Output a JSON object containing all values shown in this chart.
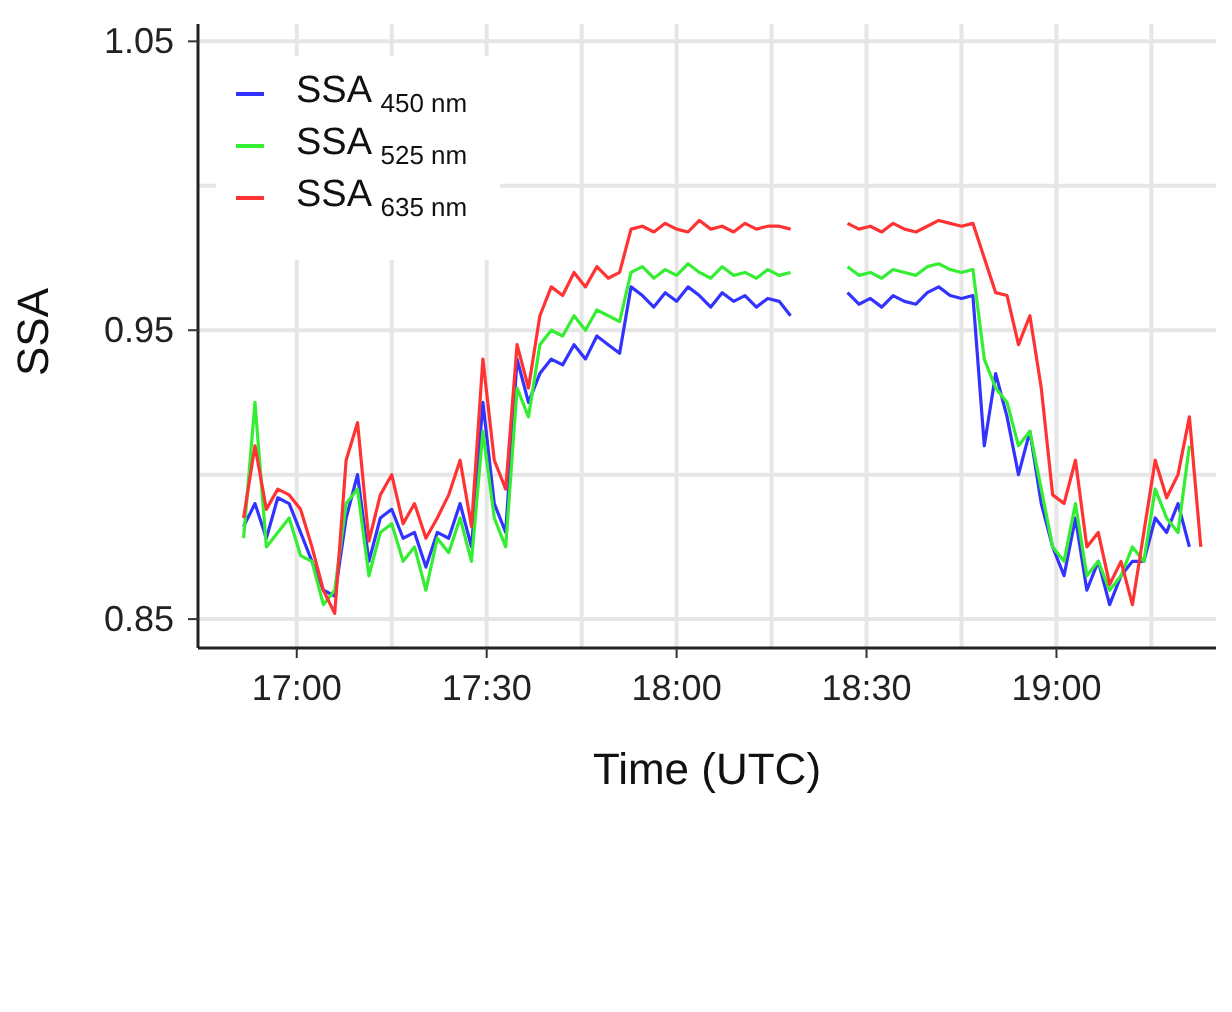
{
  "chart_data": {
    "type": "line",
    "xlabel": "Time (UTC)",
    "ylabel": "SSA",
    "x": [
      16.86,
      16.89,
      16.92,
      16.95,
      16.98,
      17.01,
      17.04,
      17.07,
      17.1,
      17.13,
      17.16,
      17.19,
      17.22,
      17.25,
      17.28,
      17.31,
      17.34,
      17.37,
      17.4,
      17.43,
      17.46,
      17.49,
      17.52,
      17.55,
      17.58,
      17.61,
      17.64,
      17.67,
      17.7,
      17.73,
      17.76,
      17.79,
      17.82,
      17.85,
      17.88,
      17.91,
      17.94,
      17.97,
      18.0,
      18.03,
      18.06,
      18.09,
      18.12,
      18.15,
      18.18,
      18.21,
      18.24,
      18.27,
      18.3,
      18.33,
      18.36,
      18.39,
      18.42,
      18.45,
      18.48,
      18.51,
      18.54,
      18.57,
      18.6,
      18.63,
      18.66,
      18.69,
      18.72,
      18.75,
      18.78,
      18.81,
      18.84,
      18.87,
      18.9,
      18.93,
      18.96,
      18.99,
      19.02,
      19.05,
      19.08,
      19.11,
      19.14,
      19.17,
      19.2,
      19.23,
      19.26,
      19.29,
      19.32,
      19.35,
      19.38
    ],
    "series": [
      {
        "name": "SSA $_{450 nm}$",
        "color": "#3333ff",
        "values": [
          0.882,
          0.89,
          0.878,
          0.892,
          0.89,
          0.88,
          0.87,
          0.86,
          0.858,
          0.885,
          0.9,
          0.87,
          0.885,
          0.888,
          0.878,
          0.88,
          0.868,
          0.88,
          0.878,
          0.89,
          0.875,
          0.925,
          0.89,
          0.88,
          0.94,
          0.925,
          0.935,
          0.94,
          0.938,
          0.945,
          0.94,
          0.948,
          0.945,
          0.942,
          0.965,
          0.962,
          0.958,
          0.963,
          0.96,
          0.965,
          0.962,
          0.958,
          0.963,
          0.96,
          0.962,
          0.958,
          0.961,
          0.96,
          0.955,
          null,
          null,
          null,
          null,
          0.963,
          0.959,
          0.961,
          0.958,
          0.962,
          0.96,
          0.959,
          0.963,
          0.965,
          0.962,
          0.961,
          0.962,
          0.91,
          0.935,
          0.92,
          0.9,
          0.915,
          0.89,
          0.875,
          0.865,
          0.885,
          0.86,
          0.87,
          0.855,
          0.865,
          0.87,
          0.87,
          0.885,
          0.88,
          0.89,
          0.875,
          null
        ]
      },
      {
        "name": "SSA $_{525 nm}$",
        "color": "#33ee33",
        "values": [
          0.878,
          0.925,
          0.875,
          0.88,
          0.885,
          0.872,
          0.87,
          0.855,
          0.86,
          0.89,
          0.895,
          0.865,
          0.88,
          0.883,
          0.87,
          0.875,
          0.86,
          0.878,
          0.873,
          0.885,
          0.87,
          0.915,
          0.885,
          0.875,
          0.93,
          0.92,
          0.945,
          0.95,
          0.948,
          0.955,
          0.95,
          0.957,
          0.955,
          0.953,
          0.97,
          0.972,
          0.968,
          0.971,
          0.969,
          0.973,
          0.97,
          0.968,
          0.972,
          0.969,
          0.97,
          0.968,
          0.971,
          0.969,
          0.97,
          null,
          null,
          null,
          null,
          0.972,
          0.969,
          0.97,
          0.968,
          0.971,
          0.97,
          0.969,
          0.972,
          0.973,
          0.971,
          0.97,
          0.971,
          0.94,
          0.93,
          0.925,
          0.91,
          0.915,
          0.895,
          0.875,
          0.87,
          0.89,
          0.865,
          0.87,
          0.86,
          0.865,
          0.875,
          0.87,
          0.895,
          0.885,
          0.88,
          0.91,
          null
        ]
      },
      {
        "name": "SSA $_{635 nm}$",
        "color": "#ff3333",
        "values": [
          0.885,
          0.91,
          0.888,
          0.895,
          0.893,
          0.888,
          0.875,
          0.86,
          0.852,
          0.905,
          0.918,
          0.877,
          0.893,
          0.9,
          0.883,
          0.89,
          0.878,
          0.885,
          0.893,
          0.905,
          0.882,
          0.94,
          0.905,
          0.895,
          0.945,
          0.93,
          0.955,
          0.965,
          0.962,
          0.97,
          0.965,
          0.972,
          0.968,
          0.97,
          0.985,
          0.986,
          0.984,
          0.987,
          0.985,
          0.984,
          0.988,
          0.985,
          0.986,
          0.984,
          0.987,
          0.985,
          0.986,
          0.986,
          0.985,
          null,
          null,
          null,
          null,
          0.987,
          0.985,
          0.986,
          0.984,
          0.987,
          0.985,
          0.984,
          0.986,
          0.988,
          0.987,
          0.986,
          0.987,
          0.975,
          0.963,
          0.962,
          0.945,
          0.955,
          0.93,
          0.893,
          0.89,
          0.905,
          0.875,
          0.88,
          0.862,
          0.87,
          0.855,
          0.88,
          0.905,
          0.892,
          0.9,
          0.92,
          0.875
        ]
      }
    ],
    "xlim": [
      16.74,
      19.42
    ],
    "xticks": [
      {
        "value": 17,
        "label": "17:00"
      },
      {
        "value": 17.25,
        "label": null
      },
      {
        "value": 17.5,
        "label": "17:30"
      },
      {
        "value": 17.75,
        "label": null
      },
      {
        "value": 18,
        "label": "18:00"
      },
      {
        "value": 18.25,
        "label": null
      },
      {
        "value": 18.5,
        "label": "18:30"
      },
      {
        "value": 18.75,
        "label": null
      },
      {
        "value": 19,
        "label": "19:00"
      },
      {
        "value": 19.25,
        "label": null
      }
    ],
    "ylim": [
      0.84,
      1.056
    ],
    "yticks": [
      0.85,
      {
        "value": 0.9,
        "label": null
      },
      0.95,
      {
        "value": 1.0,
        "label": null
      },
      1.05
    ],
    "grid": true,
    "legend": "top left",
    "marker": "none",
    "line_style": "solid"
  }
}
